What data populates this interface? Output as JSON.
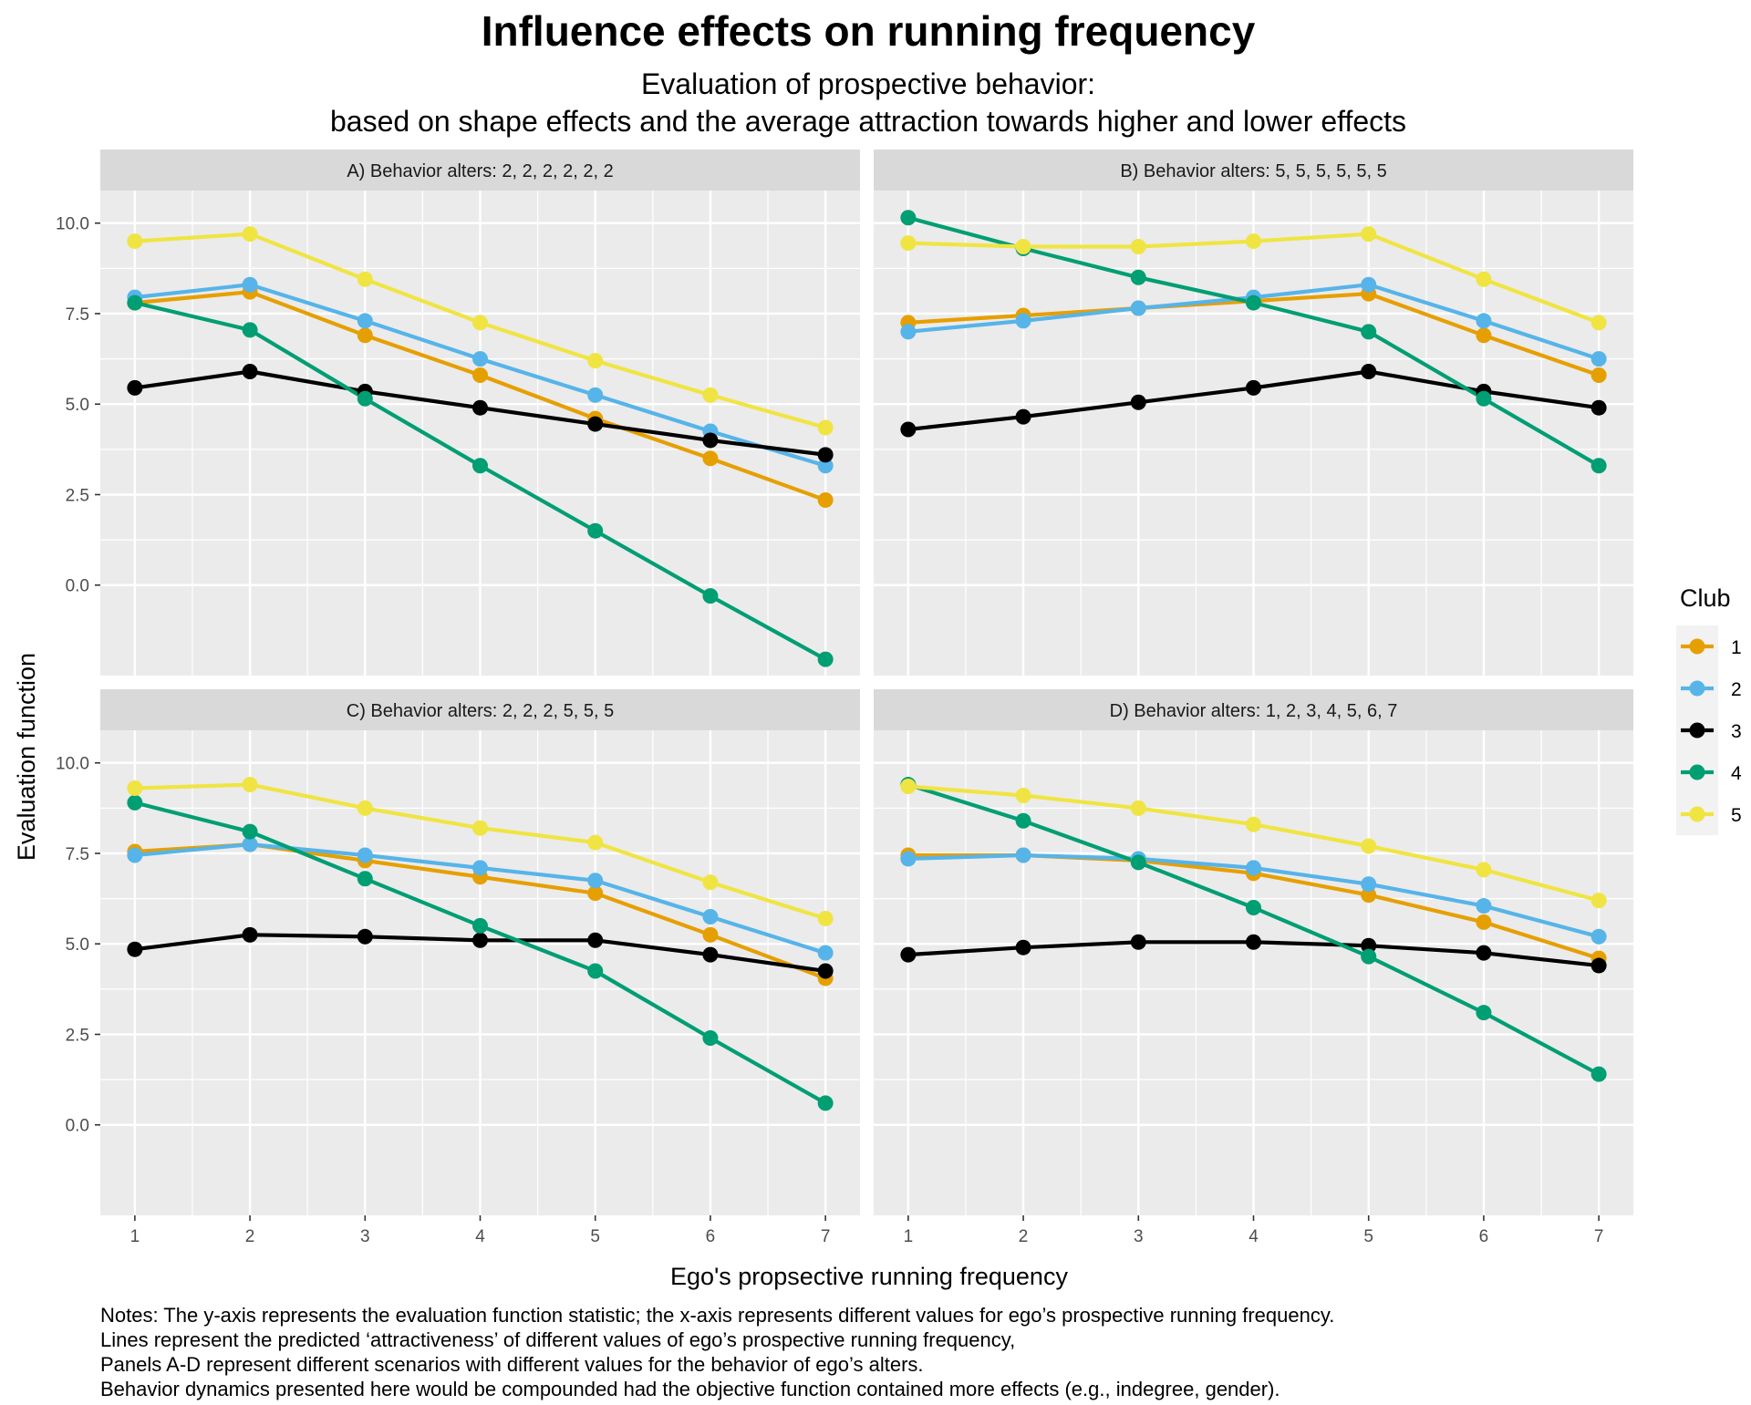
{
  "chart_data": {
    "type": "line",
    "title": "Influence effects on running frequency",
    "subtitle_lines": [
      "Evaluation of prospective behavior:",
      "based on shape effects and the average attraction towards higher and lower effects"
    ],
    "xlabel": "Ego's propsective running frequency",
    "ylabel": "Evaluation function",
    "x": [
      1,
      2,
      3,
      4,
      5,
      6,
      7
    ],
    "x_ticks": [
      "1",
      "2",
      "3",
      "4",
      "5",
      "6",
      "7"
    ],
    "xlim": [
      0.7,
      7.3
    ],
    "y_ticks": [
      0,
      2.5,
      5,
      7.5,
      10
    ],
    "y_tick_labels": [
      "0.0",
      "2.5",
      "5.0",
      "7.5",
      "10.0"
    ],
    "ylim": [
      -2.5,
      10.9
    ],
    "grid": true,
    "legend": {
      "title": "Club",
      "placement": "right"
    },
    "series_styles": [
      {
        "name": "1",
        "color": "#E69F00"
      },
      {
        "name": "2",
        "color": "#56B4E9"
      },
      {
        "name": "3",
        "color": "#000000"
      },
      {
        "name": "4",
        "color": "#009E73"
      },
      {
        "name": "5",
        "color": "#F0E442"
      }
    ],
    "panels": [
      {
        "label": "A) Behavior alters: 2, 2, 2, 2, 2, 2",
        "series": [
          {
            "name": "1",
            "values": [
              7.8,
              8.1,
              6.9,
              5.8,
              4.6,
              3.5,
              2.35
            ]
          },
          {
            "name": "2",
            "values": [
              7.95,
              8.3,
              7.3,
              6.25,
              5.25,
              4.25,
              3.3
            ]
          },
          {
            "name": "3",
            "values": [
              5.45,
              5.9,
              5.35,
              4.9,
              4.45,
              4.0,
              3.6
            ]
          },
          {
            "name": "4",
            "values": [
              7.8,
              7.05,
              5.15,
              3.3,
              1.5,
              -0.3,
              -2.05
            ]
          },
          {
            "name": "5",
            "values": [
              9.5,
              9.7,
              8.45,
              7.25,
              6.2,
              5.25,
              4.35
            ]
          }
        ]
      },
      {
        "label": "B) Behavior alters: 5, 5, 5, 5, 5, 5",
        "series": [
          {
            "name": "1",
            "values": [
              7.25,
              7.45,
              7.65,
              7.85,
              8.05,
              6.9,
              5.8
            ]
          },
          {
            "name": "2",
            "values": [
              7.0,
              7.3,
              7.65,
              7.95,
              8.3,
              7.3,
              6.25
            ]
          },
          {
            "name": "3",
            "values": [
              4.3,
              4.65,
              5.05,
              5.45,
              5.9,
              5.35,
              4.9
            ]
          },
          {
            "name": "4",
            "values": [
              10.15,
              9.3,
              8.5,
              7.8,
              7.0,
              5.15,
              3.3
            ]
          },
          {
            "name": "5",
            "values": [
              9.45,
              9.35,
              9.35,
              9.5,
              9.7,
              8.45,
              7.25
            ]
          }
        ]
      },
      {
        "label": "C) Behavior alters: 2, 2, 2, 5, 5, 5",
        "series": [
          {
            "name": "1",
            "values": [
              7.55,
              7.75,
              7.3,
              6.85,
              6.4,
              5.25,
              4.05
            ]
          },
          {
            "name": "2",
            "values": [
              7.45,
              7.75,
              7.45,
              7.1,
              6.75,
              5.75,
              4.75
            ]
          },
          {
            "name": "3",
            "values": [
              4.85,
              5.25,
              5.2,
              5.1,
              5.1,
              4.7,
              4.25
            ]
          },
          {
            "name": "4",
            "values": [
              8.9,
              8.1,
              6.8,
              5.5,
              4.25,
              2.4,
              0.6
            ]
          },
          {
            "name": "5",
            "values": [
              9.3,
              9.4,
              8.75,
              8.2,
              7.8,
              6.7,
              5.7
            ]
          }
        ]
      },
      {
        "label": "D) Behavior alters: 1, 2, 3, 4, 5, 6, 7",
        "series": [
          {
            "name": "1",
            "values": [
              7.45,
              7.45,
              7.3,
              6.95,
              6.35,
              5.6,
              4.6
            ]
          },
          {
            "name": "2",
            "values": [
              7.35,
              7.45,
              7.35,
              7.1,
              6.65,
              6.05,
              5.2
            ]
          },
          {
            "name": "3",
            "values": [
              4.7,
              4.9,
              5.05,
              5.05,
              4.95,
              4.75,
              4.4
            ]
          },
          {
            "name": "4",
            "values": [
              9.4,
              8.4,
              7.25,
              6.0,
              4.65,
              3.1,
              1.4
            ]
          },
          {
            "name": "5",
            "values": [
              9.35,
              9.1,
              8.75,
              8.3,
              7.7,
              7.05,
              6.2
            ]
          }
        ]
      }
    ],
    "notes": [
      "Notes: The y-axis represents the evaluation function statistic; the x-axis represents different values for ego’s prospective running frequency.",
      "Lines represent the predicted ‘attractiveness’ of different values of ego’s prospective running frequency,",
      "Panels A-D represent different scenarios with different values for the behavior of ego’s alters.",
      "Behavior dynamics presented here would be compounded had the objective function contained more effects (e.g., indegree, gender)."
    ]
  }
}
